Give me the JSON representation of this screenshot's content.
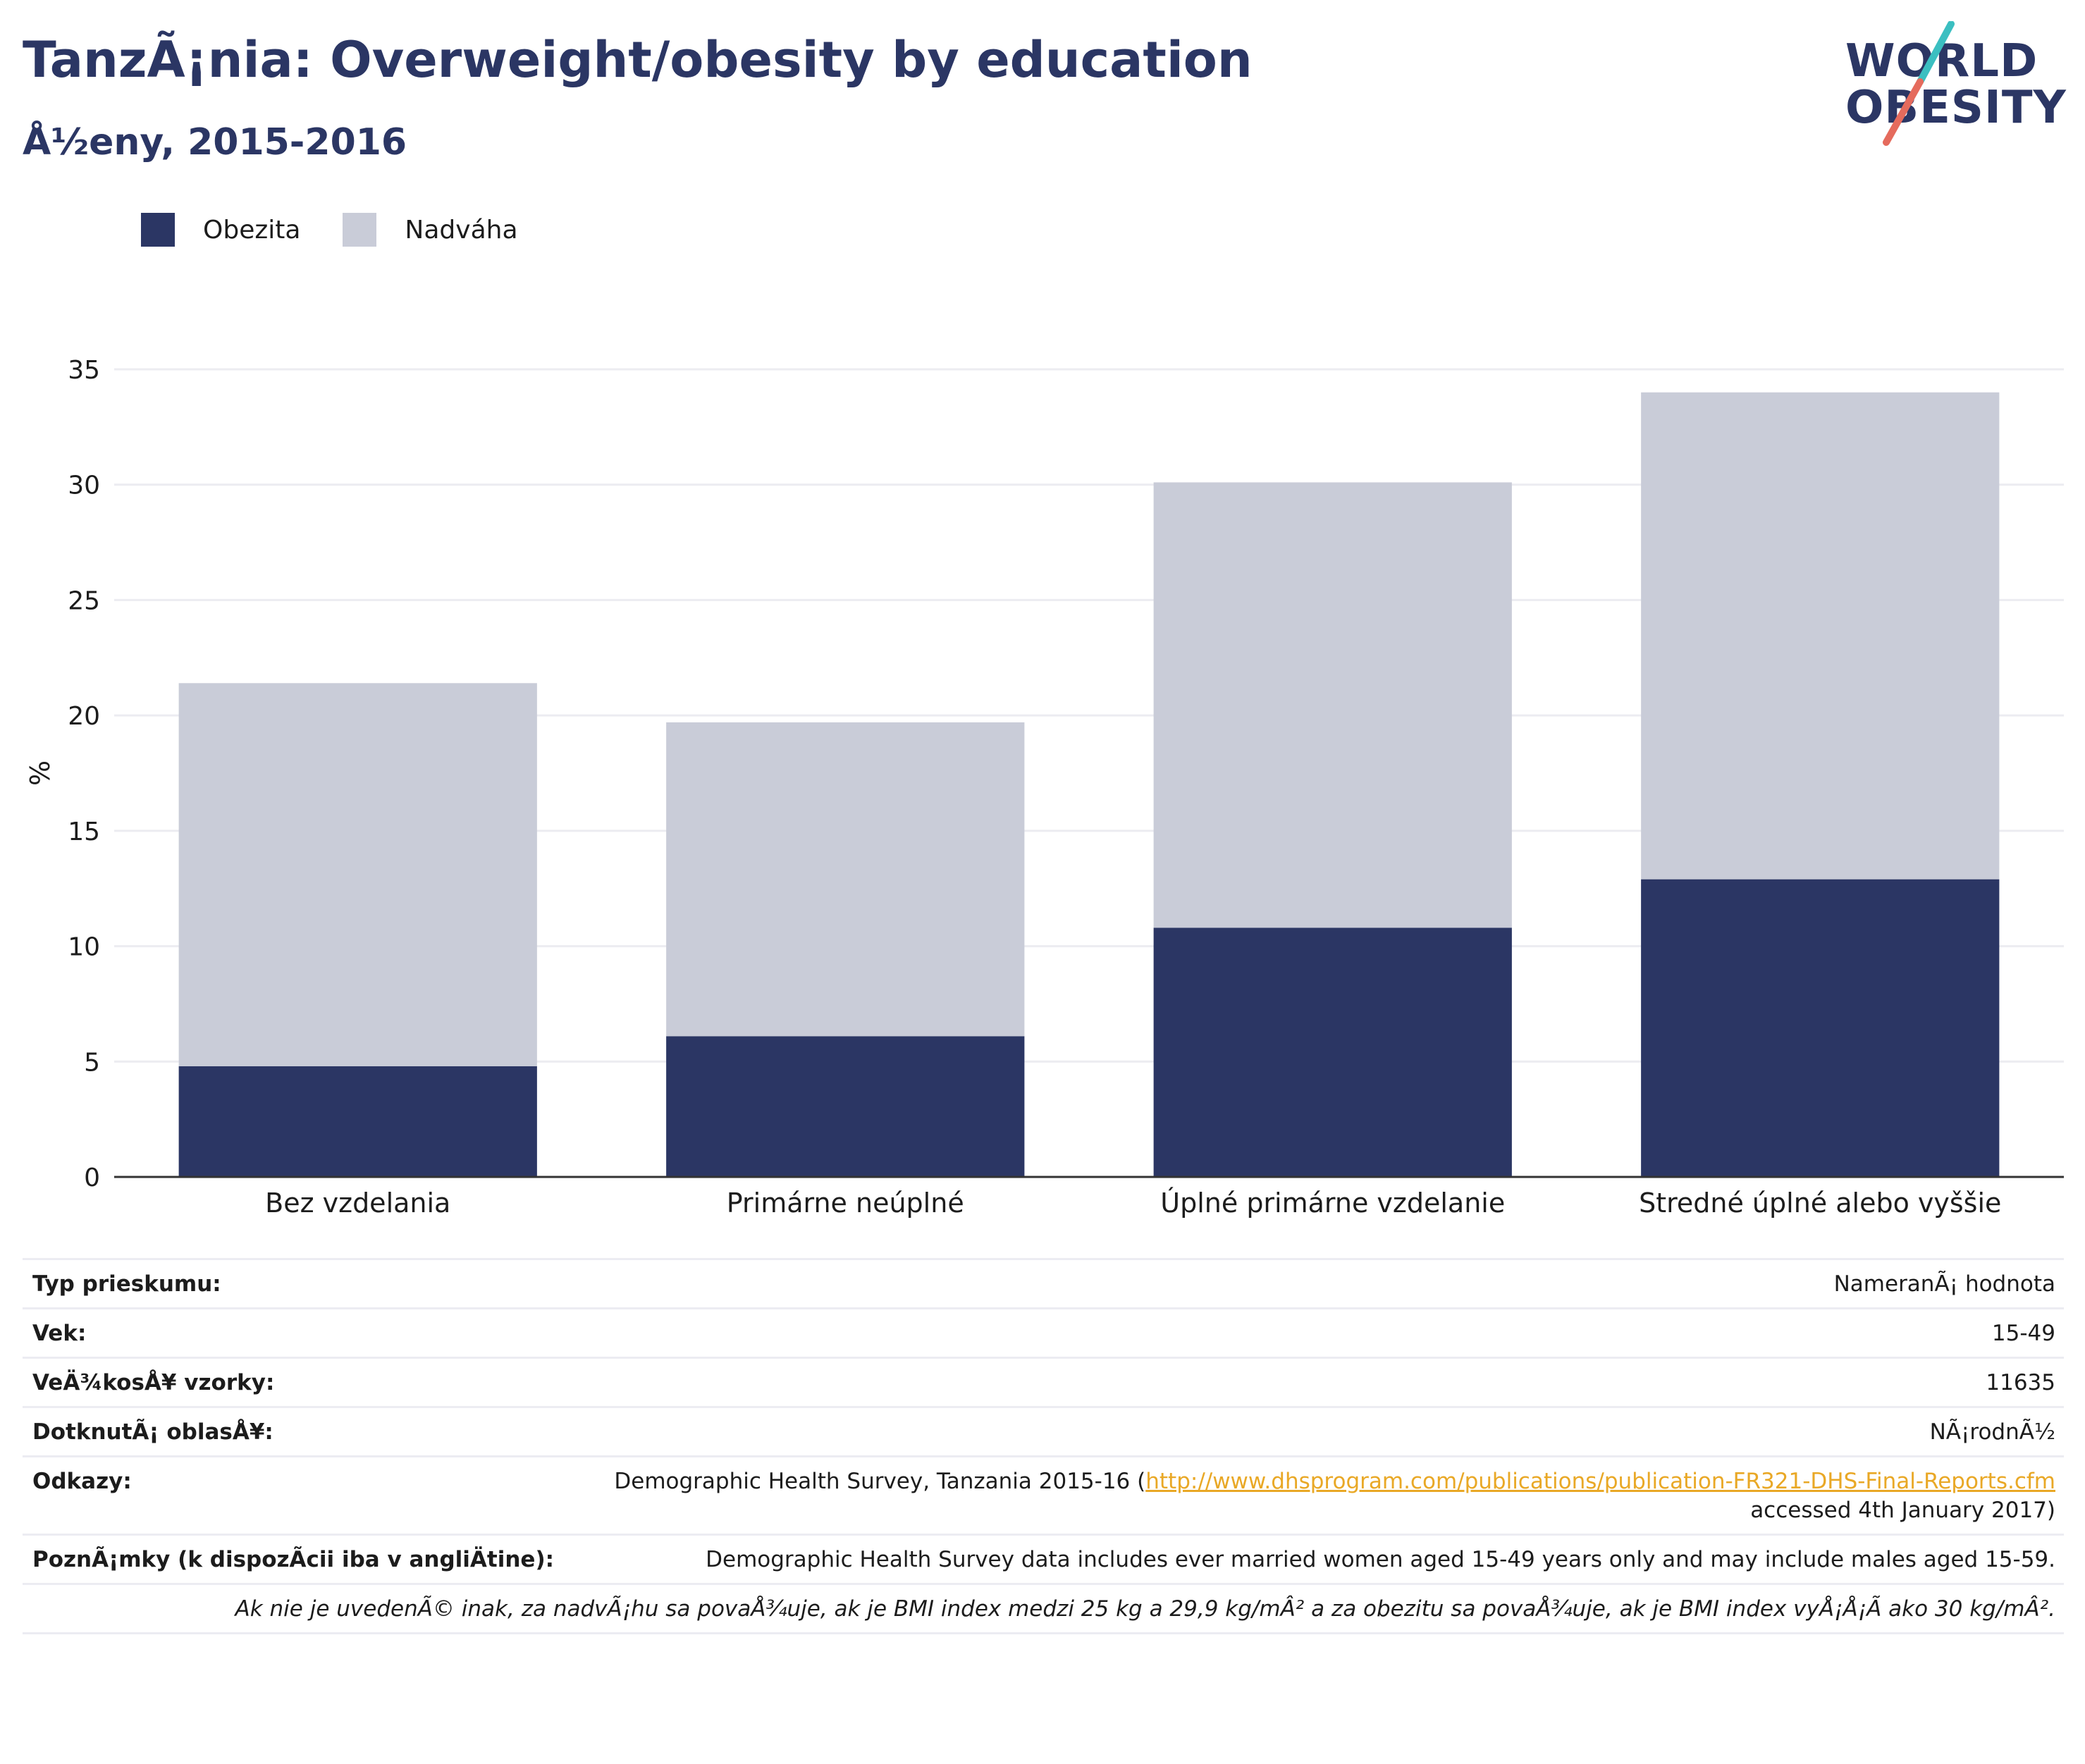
{
  "header": {
    "title": "TanzÃ¡nia: Overweight/obesity by education",
    "subtitle": "Å½eny, 2015-2016"
  },
  "logo": {
    "line1": "WORLD",
    "line2": "OBESITY"
  },
  "legend": [
    {
      "label": "Obezita",
      "color": "#2b3664"
    },
    {
      "label": "Nadváha",
      "color": "#c9ccd8"
    }
  ],
  "chart_data": {
    "type": "bar",
    "stacked": true,
    "categories": [
      "Bez vzdelania",
      "Primárne neúplné",
      "Úplné primárne vzdelanie",
      "Stredné úplné alebo vyššie"
    ],
    "series": [
      {
        "name": "Obezita",
        "values": [
          4.8,
          6.1,
          10.8,
          12.9
        ],
        "color": "#2b3664"
      },
      {
        "name": "Nadváha",
        "values": [
          16.6,
          13.6,
          19.3,
          21.1
        ],
        "color": "#c9ccd8"
      }
    ],
    "ylabel": "%",
    "xlabel": "",
    "ylim": [
      0,
      35
    ],
    "yticks": [
      0,
      5,
      10,
      15,
      20,
      25,
      30,
      35
    ],
    "grid": true,
    "legend_position": "top-left"
  },
  "info": {
    "rows": [
      {
        "label": "Typ prieskumu:",
        "value": "NameranÃ¡ hodnota"
      },
      {
        "label": "Vek:",
        "value": "15-49"
      },
      {
        "label": "VeÄ¾kosÅ¥ vzorky:",
        "value": "11635"
      },
      {
        "label": "DotknutÃ¡ oblasÅ¥:",
        "value": "NÃ¡rodnÃ½"
      }
    ],
    "references": {
      "label": "Odkazy:",
      "prefix": "Demographic Health Survey, Tanzania 2015-16 (",
      "link": "http://www.dhsprogram.com/publications/publication-FR321-DHS-Final-Reports.cfm",
      "suffix": "accessed 4th January 2017)"
    },
    "notes": {
      "label": "PoznÃ¡mky (k dispozÃcii iba v angliÄ\u001ftine):",
      "value": "Demographic Health Survey data includes ever married women aged 15-49 years only and may include males aged 15-59."
    },
    "footnote": "Ak nie je uvedenÃ© inak, za nadvÃ¡hu sa povaÅ¾uje, ak je BMI index medzi 25 kg a 29,9 kg/mÂ² a za obezitu sa povaÅ¾uje, ak je BMI index vyÅ¡Å¡Ã ako 30 kg/mÂ²."
  }
}
